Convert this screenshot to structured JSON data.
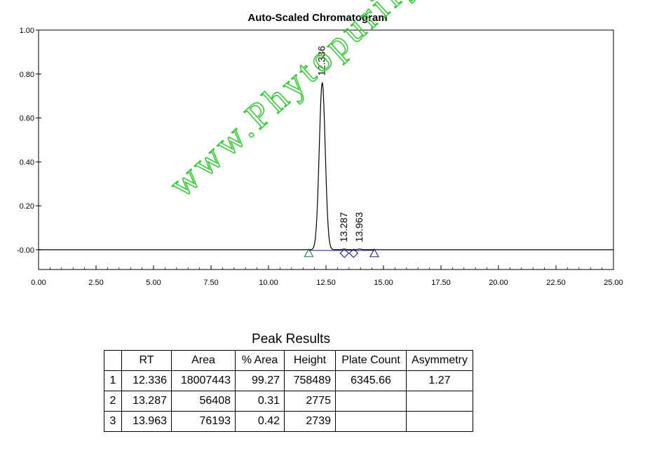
{
  "chart_data": {
    "type": "line",
    "title": "Auto-Scaled Chromatogram",
    "xlabel": "",
    "ylabel": "",
    "xlim": [
      0,
      25
    ],
    "ylim": [
      -0.09,
      1.0
    ],
    "x_ticks": [
      "0.00",
      "2.50",
      "5.00",
      "7.50",
      "10.00",
      "12.50",
      "15.00",
      "17.50",
      "20.00",
      "22.50",
      "25.00"
    ],
    "y_ticks": [
      "-0.00",
      "0.20",
      "0.40",
      "0.60",
      "0.80",
      "1.00"
    ],
    "y_tick_values": [
      0.0,
      0.2,
      0.4,
      0.6,
      0.8,
      1.0
    ],
    "peaks": [
      {
        "rt": 12.336,
        "label": "12.336",
        "height": 0.76,
        "sigma": 0.13
      },
      {
        "rt": 13.287,
        "label": "13.287",
        "height": 0.003,
        "sigma": 0.08
      },
      {
        "rt": 13.963,
        "label": "13.963",
        "height": 0.003,
        "sigma": 0.08
      }
    ],
    "markers": [
      {
        "shape": "triangle",
        "x": 11.75,
        "color": "#1a7a3a"
      },
      {
        "shape": "diamond",
        "x": 13.3,
        "color": "#1a1a8c"
      },
      {
        "shape": "diamond",
        "x": 13.7,
        "color": "#1a1a8c"
      },
      {
        "shape": "triangle",
        "x": 14.6,
        "color": "#1a1a8c"
      }
    ],
    "line_color": "#000000",
    "baseline_color": "#1a1a8c"
  },
  "results": {
    "title": "Peak Results",
    "headers": [
      "",
      "RT",
      "Area",
      "% Area",
      "Height",
      "Plate Count",
      "Asymmetry"
    ],
    "rows": [
      {
        "index": "1",
        "rt": "12.336",
        "area": "18007443",
        "pct_area": "99.27",
        "height": "758489",
        "plate_count": "6345.66",
        "asymmetry": "1.27"
      },
      {
        "index": "2",
        "rt": "13.287",
        "area": "56408",
        "pct_area": "0.31",
        "height": "2775",
        "plate_count": "",
        "asymmetry": ""
      },
      {
        "index": "3",
        "rt": "13.963",
        "area": "76193",
        "pct_area": "0.42",
        "height": "2739",
        "plate_count": "",
        "asymmetry": ""
      }
    ]
  },
  "watermark": {
    "text": "www.Phytopurify.com",
    "color": "#3cc83c"
  }
}
